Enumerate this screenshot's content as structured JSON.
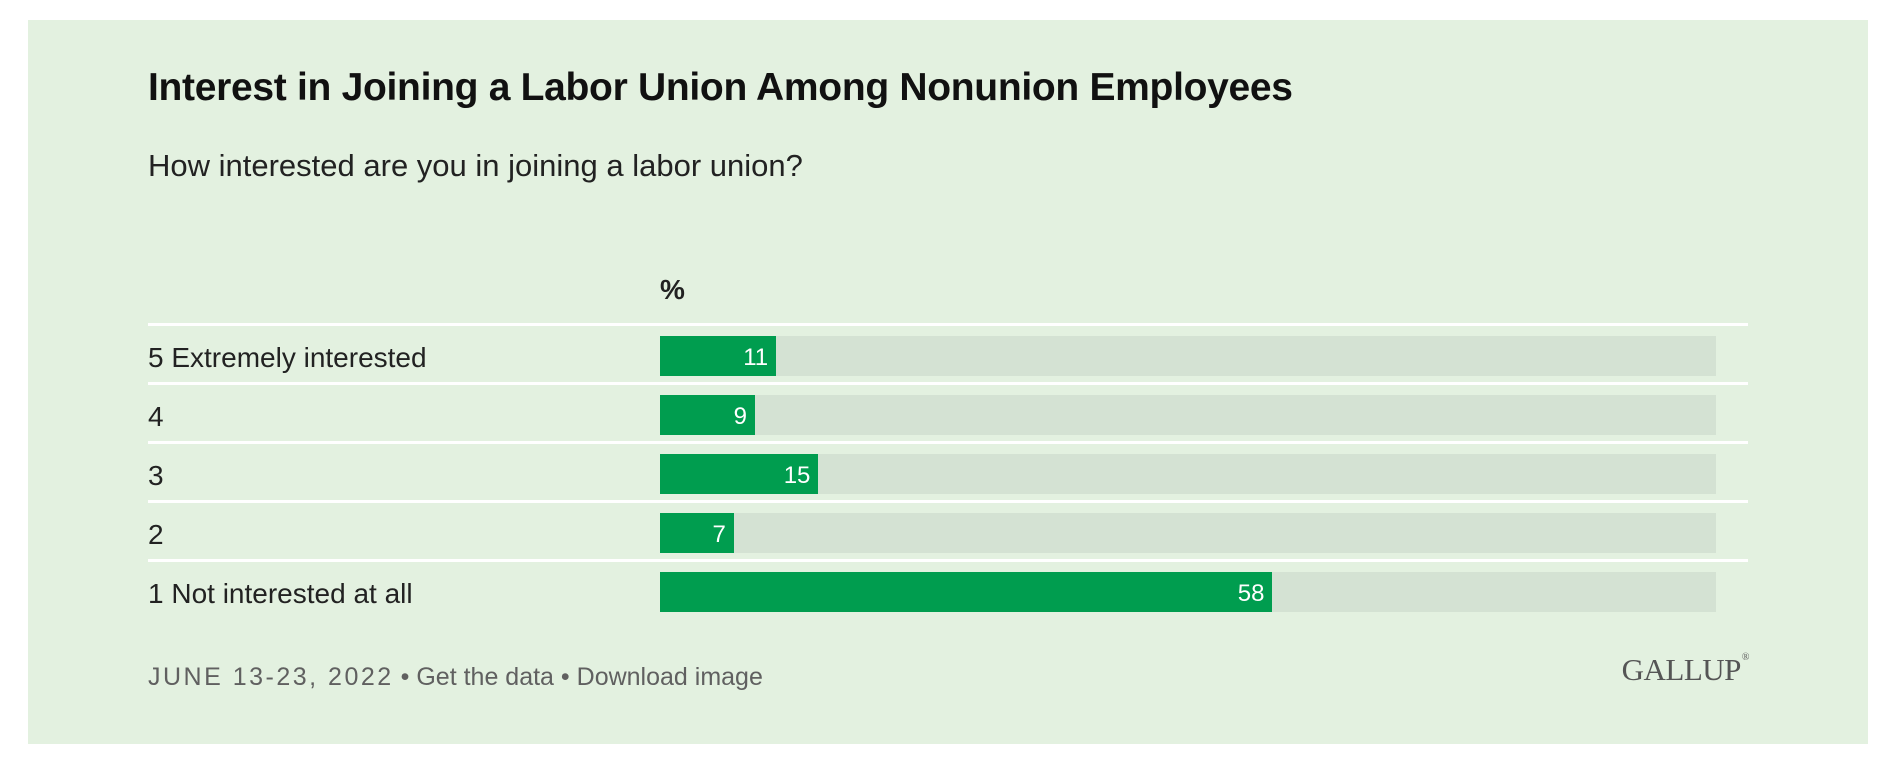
{
  "header": {
    "title": "Interest in Joining a Labor Union Among Nonunion Employees",
    "subtitle": "How interested are you in joining a labor union?"
  },
  "chart_data": {
    "type": "bar",
    "orientation": "horizontal",
    "title": "Interest in Joining a Labor Union Among Nonunion Employees",
    "subtitle": "How interested are you in joining a labor union?",
    "value_header": "%",
    "categories": [
      "5 Extremely interested",
      "4",
      "3",
      "2",
      "1 Not interested at all"
    ],
    "values": [
      11,
      9,
      15,
      7,
      58
    ],
    "xlim": [
      0,
      100
    ],
    "bar_color": "#009d4f",
    "track_color": "#d4e2d3"
  },
  "footer": {
    "date": "JUNE 13-23, 2022",
    "separator": "•",
    "get_data": "Get the data",
    "download_image": "Download image",
    "logo": "GALLUP",
    "logo_mark": "®"
  },
  "colors": {
    "background": "#e3f1e0",
    "accent": "#009d4f"
  }
}
